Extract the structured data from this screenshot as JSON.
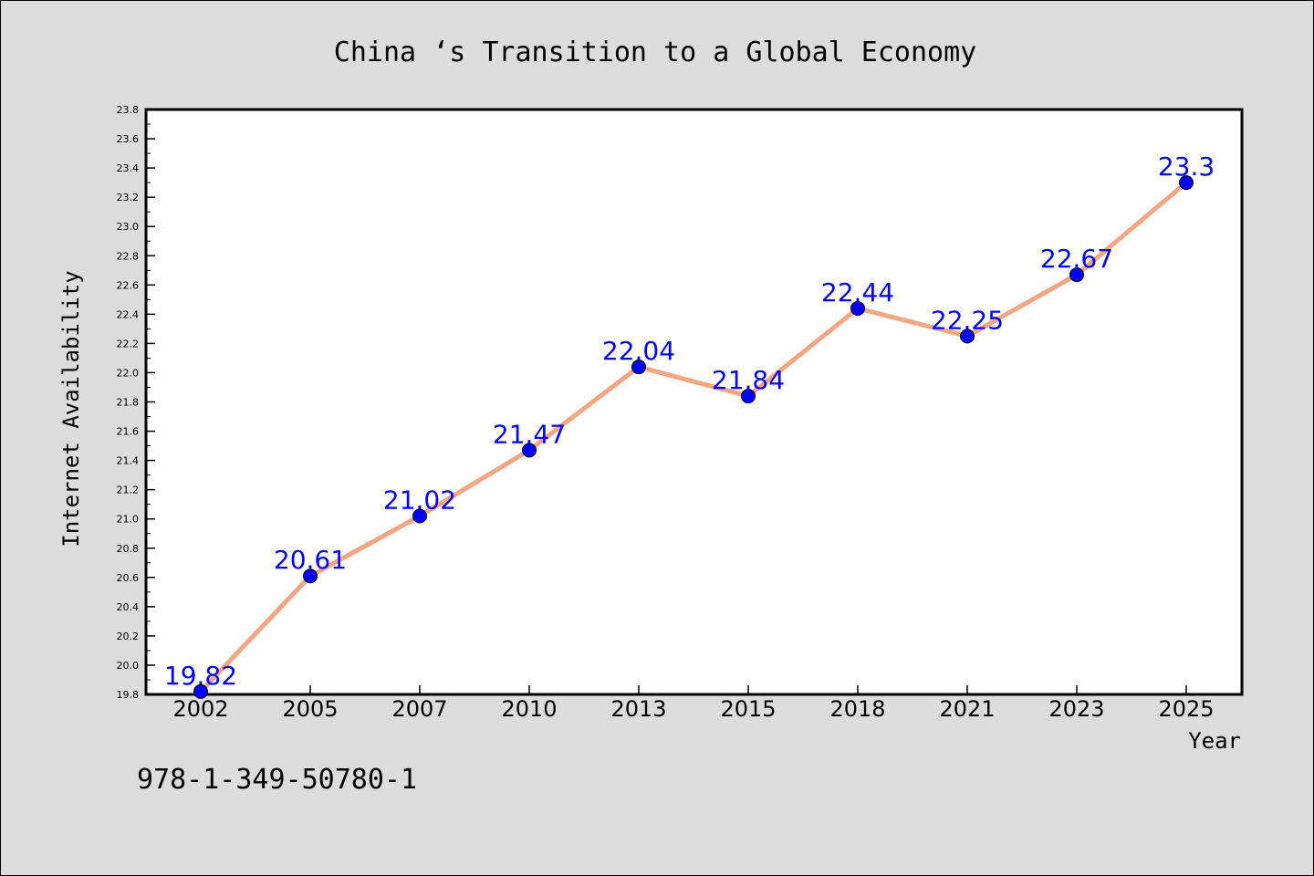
{
  "colors": {
    "background": "#dcdcdc",
    "plot_background": "#ffffff",
    "line": "#f4a582",
    "marker": "#0000ff",
    "label": "#0000ff"
  },
  "footnote": "978-1-349-50780-1",
  "chart_data": {
    "type": "line",
    "title": "China ‘s Transition to a Global Economy",
    "xlabel": "Year",
    "ylabel": "Internet Availability",
    "categories": [
      "2002",
      "2005",
      "2007",
      "2010",
      "2013",
      "2015",
      "2018",
      "2021",
      "2023",
      "2025"
    ],
    "values": [
      19.82,
      20.61,
      21.02,
      21.47,
      22.04,
      21.84,
      22.44,
      22.25,
      22.67,
      23.3
    ],
    "data_labels": [
      "19.82",
      "20.61",
      "21.02",
      "21.47",
      "22.04",
      "21.84",
      "22.44",
      "22.25",
      "22.67",
      "23.3"
    ],
    "ylim": [
      19.8,
      23.8
    ],
    "yticks": [
      "19.8",
      "20.0",
      "20.2",
      "20.4",
      "20.6",
      "20.8",
      "21.0",
      "21.2",
      "21.4",
      "21.6",
      "21.8",
      "22.0",
      "22.2",
      "22.4",
      "22.6",
      "22.8",
      "23.0",
      "23.2",
      "23.4",
      "23.6",
      "23.8"
    ],
    "grid": false,
    "legend": "none"
  }
}
